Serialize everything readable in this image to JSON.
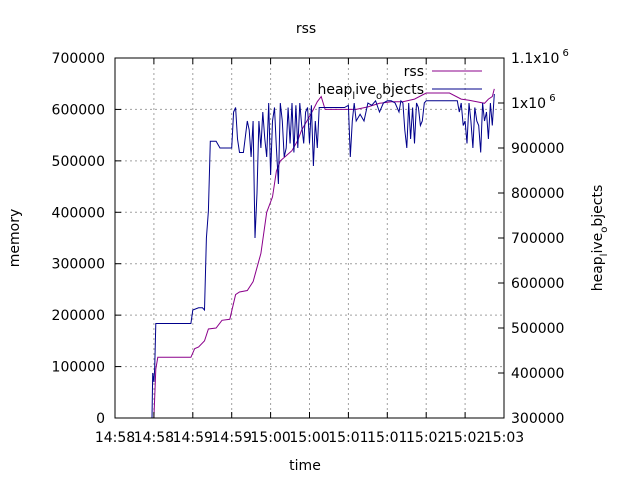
{
  "chart_data": {
    "type": "line",
    "title": "rss",
    "xlabel": "time",
    "ylabel": "memory",
    "y2label": "heap_live_objects",
    "x_ticks": [
      "14:58",
      "14:58",
      "14:59",
      "14:59",
      "15:00",
      "15:00",
      "15:01",
      "15:01",
      "15:02",
      "15:02",
      "15:03"
    ],
    "x_range": [
      0,
      10
    ],
    "ylim": [
      0,
      700000
    ],
    "y_ticks": [
      "0",
      "100000",
      "200000",
      "300000",
      "400000",
      "500000",
      "600000",
      "700000"
    ],
    "y2lim": [
      300000,
      1100000
    ],
    "y2_ticks": [
      "300000",
      "400000",
      "500000",
      "600000",
      "700000",
      "800000",
      "900000",
      "1x10^6",
      "1.1x10^6"
    ],
    "grid": true,
    "legend_position": "top-right",
    "series": [
      {
        "name": "rss",
        "axis": "y",
        "color": "#8b008b",
        "points": [
          [
            0.95,
            0
          ],
          [
            1.0,
            0
          ],
          [
            1.05,
            95000
          ],
          [
            1.1,
            118000
          ],
          [
            1.3,
            118000
          ],
          [
            1.6,
            118000
          ],
          [
            1.95,
            118000
          ],
          [
            2.05,
            135000
          ],
          [
            2.15,
            138000
          ],
          [
            2.3,
            150000
          ],
          [
            2.4,
            173000
          ],
          [
            2.6,
            175000
          ],
          [
            2.75,
            190000
          ],
          [
            2.95,
            192000
          ],
          [
            3.1,
            240000
          ],
          [
            3.2,
            245000
          ],
          [
            3.4,
            248000
          ],
          [
            3.55,
            265000
          ],
          [
            3.75,
            320000
          ],
          [
            3.9,
            400000
          ],
          [
            4.05,
            430000
          ],
          [
            4.15,
            480000
          ],
          [
            4.25,
            500000
          ],
          [
            4.4,
            510000
          ],
          [
            4.55,
            520000
          ],
          [
            4.7,
            540000
          ],
          [
            4.8,
            560000
          ],
          [
            4.95,
            580000
          ],
          [
            5.1,
            600000
          ],
          [
            5.2,
            615000
          ],
          [
            5.3,
            625000
          ],
          [
            5.4,
            600000
          ],
          [
            5.6,
            600000
          ],
          [
            5.9,
            600000
          ],
          [
            6.2,
            600000
          ],
          [
            6.5,
            605000
          ],
          [
            6.8,
            612000
          ],
          [
            7.1,
            615000
          ],
          [
            7.4,
            615000
          ],
          [
            7.7,
            620000
          ],
          [
            8.0,
            632000
          ],
          [
            8.3,
            632000
          ],
          [
            8.6,
            632000
          ],
          [
            8.9,
            620000
          ],
          [
            9.1,
            618000
          ],
          [
            9.3,
            615000
          ],
          [
            9.5,
            612000
          ],
          [
            9.6,
            620000
          ],
          [
            9.7,
            625000
          ],
          [
            9.75,
            640000
          ]
        ]
      },
      {
        "name": "heap_live_objects",
        "axis": "y2",
        "color": "#00008b",
        "points": [
          [
            0.95,
            300000
          ],
          [
            0.97,
            400000
          ],
          [
            1.0,
            380000
          ],
          [
            1.02,
            410000
          ],
          [
            1.05,
            510000
          ],
          [
            1.3,
            510000
          ],
          [
            1.6,
            510000
          ],
          [
            1.95,
            510000
          ],
          [
            2.0,
            540000
          ],
          [
            2.15,
            545000
          ],
          [
            2.25,
            545000
          ],
          [
            2.3,
            540000
          ],
          [
            2.35,
            700000
          ],
          [
            2.4,
            760000
          ],
          [
            2.45,
            915000
          ],
          [
            2.6,
            915000
          ],
          [
            2.7,
            900000
          ],
          [
            2.8,
            900000
          ],
          [
            3.0,
            900000
          ],
          [
            3.05,
            980000
          ],
          [
            3.1,
            990000
          ],
          [
            3.15,
            920000
          ],
          [
            3.2,
            890000
          ],
          [
            3.3,
            890000
          ],
          [
            3.4,
            960000
          ],
          [
            3.45,
            940000
          ],
          [
            3.5,
            880000
          ],
          [
            3.55,
            960000
          ],
          [
            3.6,
            700000
          ],
          [
            3.65,
            800000
          ],
          [
            3.7,
            960000
          ],
          [
            3.75,
            900000
          ],
          [
            3.8,
            980000
          ],
          [
            3.85,
            920000
          ],
          [
            3.9,
            880000
          ],
          [
            3.95,
            1000000
          ],
          [
            4.0,
            840000
          ],
          [
            4.05,
            960000
          ],
          [
            4.1,
            990000
          ],
          [
            4.15,
            900000
          ],
          [
            4.2,
            820000
          ],
          [
            4.25,
            1000000
          ],
          [
            4.3,
            960000
          ],
          [
            4.35,
            880000
          ],
          [
            4.4,
            900000
          ],
          [
            4.45,
            990000
          ],
          [
            4.5,
            910000
          ],
          [
            4.55,
            1000000
          ],
          [
            4.6,
            890000
          ],
          [
            4.65,
            995000
          ],
          [
            4.7,
            900000
          ],
          [
            4.75,
            1000000
          ],
          [
            4.8,
            950000
          ],
          [
            4.85,
            910000
          ],
          [
            4.9,
            980000
          ],
          [
            4.95,
            990000
          ],
          [
            5.0,
            910000
          ],
          [
            5.05,
            995000
          ],
          [
            5.1,
            860000
          ],
          [
            5.15,
            960000
          ],
          [
            5.2,
            900000
          ],
          [
            5.25,
            990000
          ],
          [
            5.3,
            990000
          ],
          [
            5.6,
            990000
          ],
          [
            5.9,
            990000
          ],
          [
            6.0,
            995000
          ],
          [
            6.05,
            880000
          ],
          [
            6.1,
            960000
          ],
          [
            6.15,
            1000000
          ],
          [
            6.2,
            960000
          ],
          [
            6.3,
            975000
          ],
          [
            6.4,
            960000
          ],
          [
            6.5,
            1000000
          ],
          [
            6.6,
            995000
          ],
          [
            6.7,
            1005000
          ],
          [
            6.8,
            980000
          ],
          [
            6.9,
            1000000
          ],
          [
            7.0,
            1005000
          ],
          [
            7.1,
            1005000
          ],
          [
            7.2,
            1000000
          ],
          [
            7.3,
            980000
          ],
          [
            7.35,
            1005000
          ],
          [
            7.4,
            1000000
          ],
          [
            7.45,
            940000
          ],
          [
            7.5,
            900000
          ],
          [
            7.55,
            1000000
          ],
          [
            7.6,
            920000
          ],
          [
            7.65,
            990000
          ],
          [
            7.7,
            910000
          ],
          [
            7.75,
            1000000
          ],
          [
            7.8,
            990000
          ],
          [
            7.85,
            950000
          ],
          [
            7.9,
            960000
          ],
          [
            7.95,
            1000000
          ],
          [
            8.0,
            1005000
          ],
          [
            8.3,
            1005000
          ],
          [
            8.6,
            1005000
          ],
          [
            8.8,
            1005000
          ],
          [
            8.85,
            980000
          ],
          [
            8.9,
            1000000
          ],
          [
            8.95,
            950000
          ],
          [
            9.0,
            960000
          ],
          [
            9.05,
            910000
          ],
          [
            9.1,
            1000000
          ],
          [
            9.15,
            960000
          ],
          [
            9.2,
            900000
          ],
          [
            9.25,
            990000
          ],
          [
            9.3,
            960000
          ],
          [
            9.35,
            950000
          ],
          [
            9.4,
            890000
          ],
          [
            9.45,
            1000000
          ],
          [
            9.5,
            960000
          ],
          [
            9.55,
            980000
          ],
          [
            9.6,
            920000
          ],
          [
            9.65,
            1000000
          ],
          [
            9.7,
            950000
          ],
          [
            9.75,
            1020000
          ]
        ]
      }
    ]
  }
}
